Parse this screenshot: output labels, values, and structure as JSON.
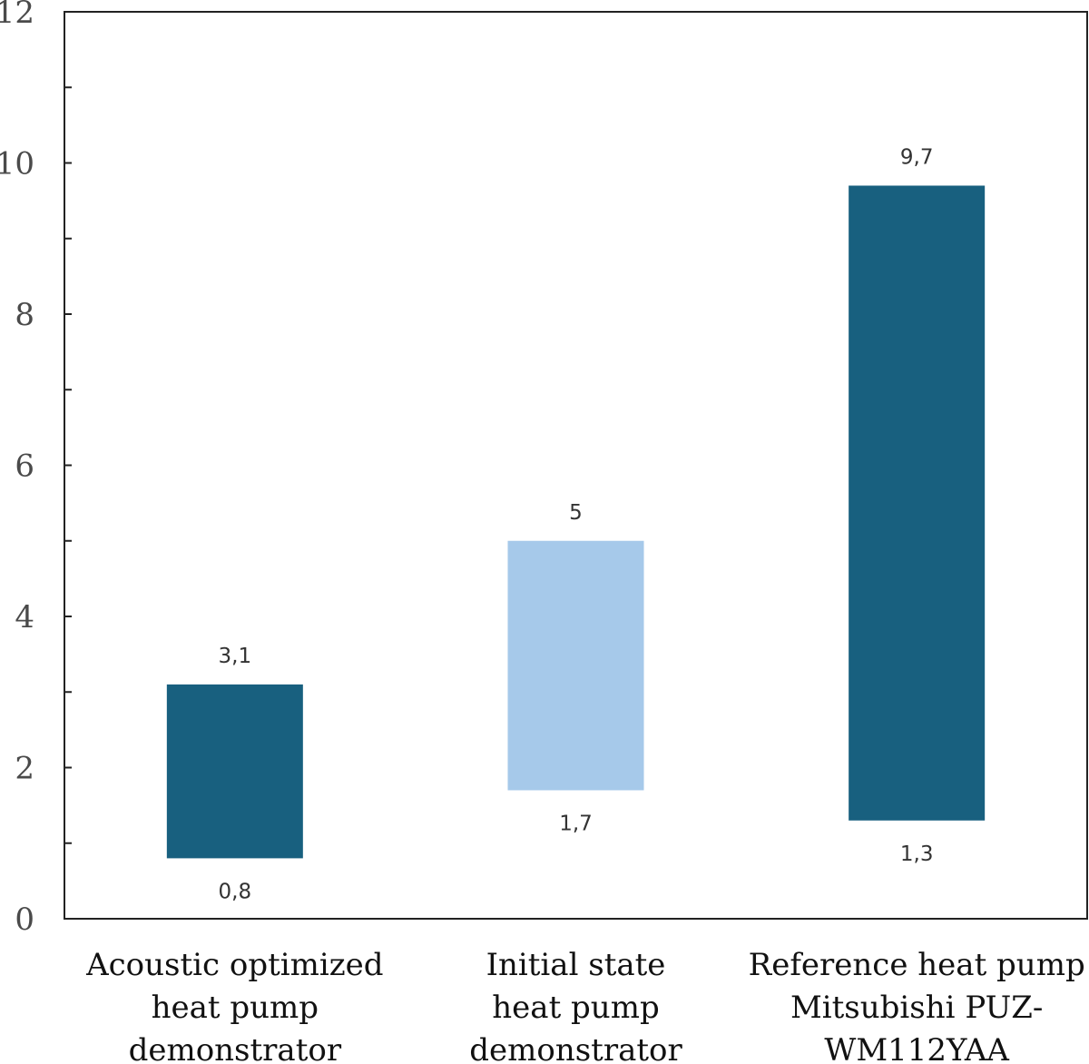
{
  "chart_data": {
    "type": "bar",
    "subtype": "floating-range",
    "title": "",
    "xlabel": "",
    "ylabel": "",
    "ylim": [
      0,
      12
    ],
    "yticks": [
      "0",
      "2",
      "4",
      "6",
      "8",
      "10",
      "12"
    ],
    "grid": false,
    "categories": [
      [
        "Acoustic optimized",
        "heat pump",
        "demonstrator"
      ],
      [
        "Initial state",
        "heat pump",
        "demonstrator"
      ],
      [
        "Reference heat pump",
        "Mitsubishi PUZ-",
        "WM112YAA"
      ]
    ],
    "series": [
      {
        "name": "range",
        "low": [
          0.8,
          1.7,
          1.3
        ],
        "high": [
          3.1,
          5,
          9.7
        ],
        "low_labels": [
          "0,8",
          "1,7",
          "1,3"
        ],
        "high_labels": [
          "3,1",
          "5",
          "9,7"
        ],
        "colors": [
          "#18607f",
          "#a6c9ea",
          "#18607f"
        ]
      }
    ]
  }
}
